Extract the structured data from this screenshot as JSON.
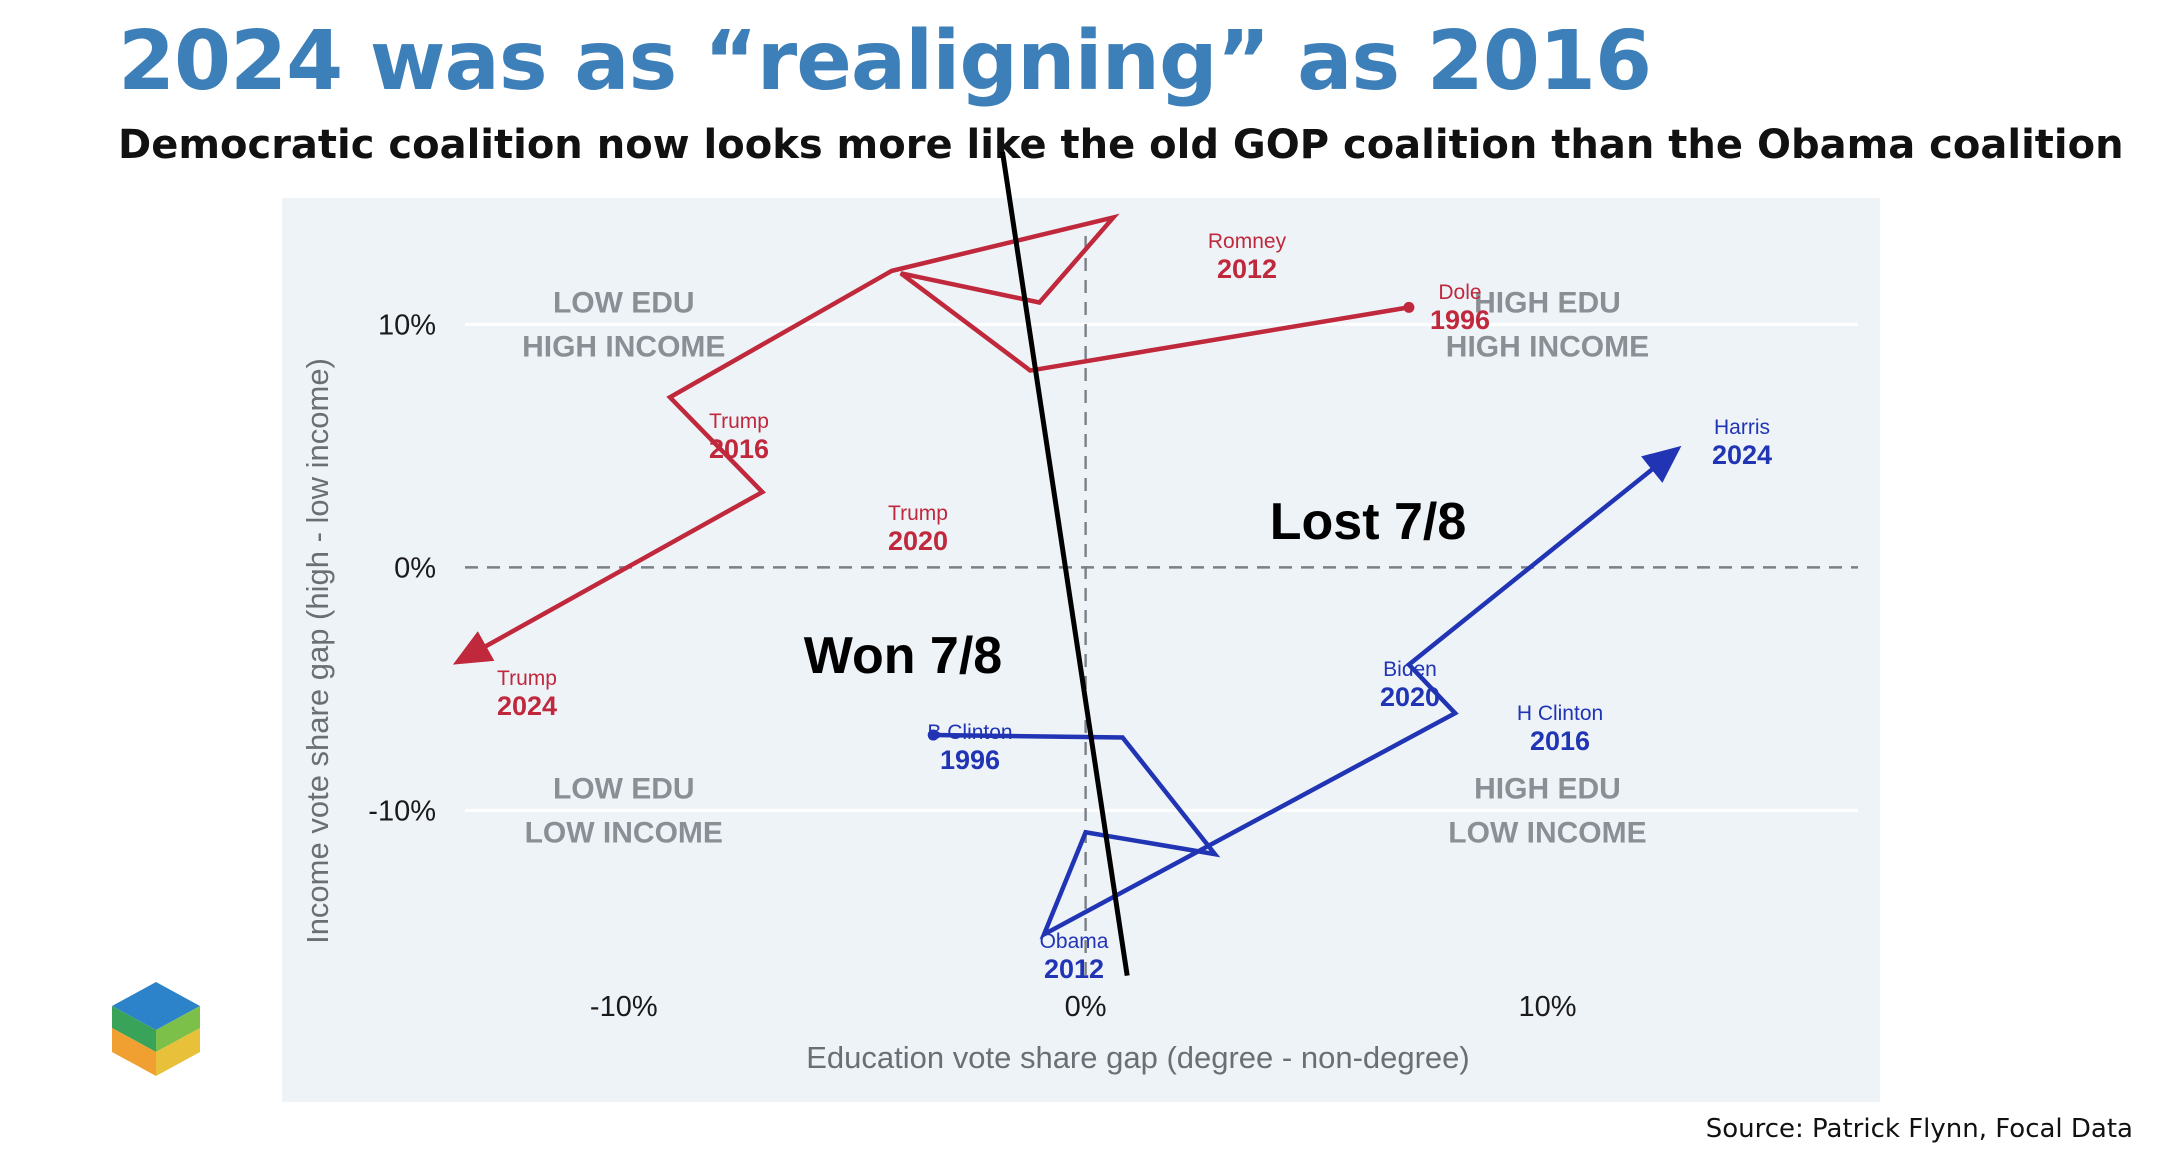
{
  "header": {
    "title": "2024 was as “realigning” as 2016",
    "subtitle": "Democratic coalition now looks more like the old GOP coalition than the Obama coalition"
  },
  "footer": {
    "source": "Source: Patrick Flynn, Focal Data"
  },
  "colors": {
    "title": "#3d7fb8",
    "republican": "#c0283c",
    "democrat": "#2034b4",
    "plot_background": "#eef3f8",
    "quadrant_label": "#8a8f96",
    "divider": "#000000"
  },
  "chart_data": {
    "type": "scatter",
    "xlabel": "Education vote share gap (degree - non-degree)",
    "ylabel": "Income vote share gap (high - low income)",
    "xlim": [
      -17.4,
      17.2
    ],
    "ylim": [
      -22,
      15.2
    ],
    "x_ticks": [
      {
        "value": -10,
        "label": "-10%"
      },
      {
        "value": 0,
        "label": "0%"
      },
      {
        "value": 10,
        "label": "10%"
      }
    ],
    "y_ticks": [
      {
        "value": 10,
        "label": "10%"
      },
      {
        "value": 0,
        "label": "0%"
      },
      {
        "value": -10,
        "label": "-10%"
      }
    ],
    "zero_lines": "dashed",
    "series": [
      {
        "party": "republican",
        "color": "#c0283c",
        "points": [
          {
            "x": 7,
            "y": 10.7,
            "name": "Dole",
            "year": "1996"
          },
          {
            "x": -1.2,
            "y": 8.1,
            "name": "",
            "year": ""
          },
          {
            "x": -4,
            "y": 12.1,
            "name": "",
            "year": ""
          },
          {
            "x": -1,
            "y": 10.9,
            "name": "",
            "year": ""
          },
          {
            "x": 0.6,
            "y": 14.4,
            "name": "Romney",
            "year": "2012"
          },
          {
            "x": -4.2,
            "y": 12.2,
            "name": "",
            "year": ""
          },
          {
            "x": -9,
            "y": 7,
            "name": "Trump",
            "year": "2016"
          },
          {
            "x": -7,
            "y": 3.1,
            "name": "Trump",
            "year": "2020"
          },
          {
            "x": -13.7,
            "y": -4,
            "name": "Trump",
            "year": "2024"
          }
        ]
      },
      {
        "party": "democrat",
        "color": "#2034b4",
        "points": [
          {
            "x": -3.3,
            "y": -6.9,
            "name": "B Clinton",
            "year": "1996"
          },
          {
            "x": 0.8,
            "y": -7,
            "name": "",
            "year": ""
          },
          {
            "x": 2.8,
            "y": -11.8,
            "name": "",
            "year": ""
          },
          {
            "x": 0,
            "y": -10.9,
            "name": "",
            "year": ""
          },
          {
            "x": -0.9,
            "y": -15.1,
            "name": "Obama",
            "year": "2012"
          },
          {
            "x": 8,
            "y": -6,
            "name": "H Clinton",
            "year": "2016"
          },
          {
            "x": 7,
            "y": -4,
            "name": "Biden",
            "year": "2020"
          },
          {
            "x": 12.9,
            "y": 5,
            "name": "Harris",
            "year": "2024"
          }
        ]
      }
    ],
    "divider_line": {
      "x1": -1.8,
      "y1": 17.1,
      "x2": 0.9,
      "y2": -16.8
    },
    "annotations": [
      {
        "text": "Won 7/8"
      },
      {
        "text": "Lost 7/8"
      }
    ],
    "quadrant_labels": [
      {
        "line1": "LOW EDU",
        "line2": "HIGH INCOME"
      },
      {
        "line1": "HIGH EDU",
        "line2": "HIGH INCOME"
      },
      {
        "line1": "LOW EDU",
        "line2": "LOW INCOME"
      },
      {
        "line1": "HIGH EDU",
        "line2": "LOW INCOME"
      }
    ]
  }
}
